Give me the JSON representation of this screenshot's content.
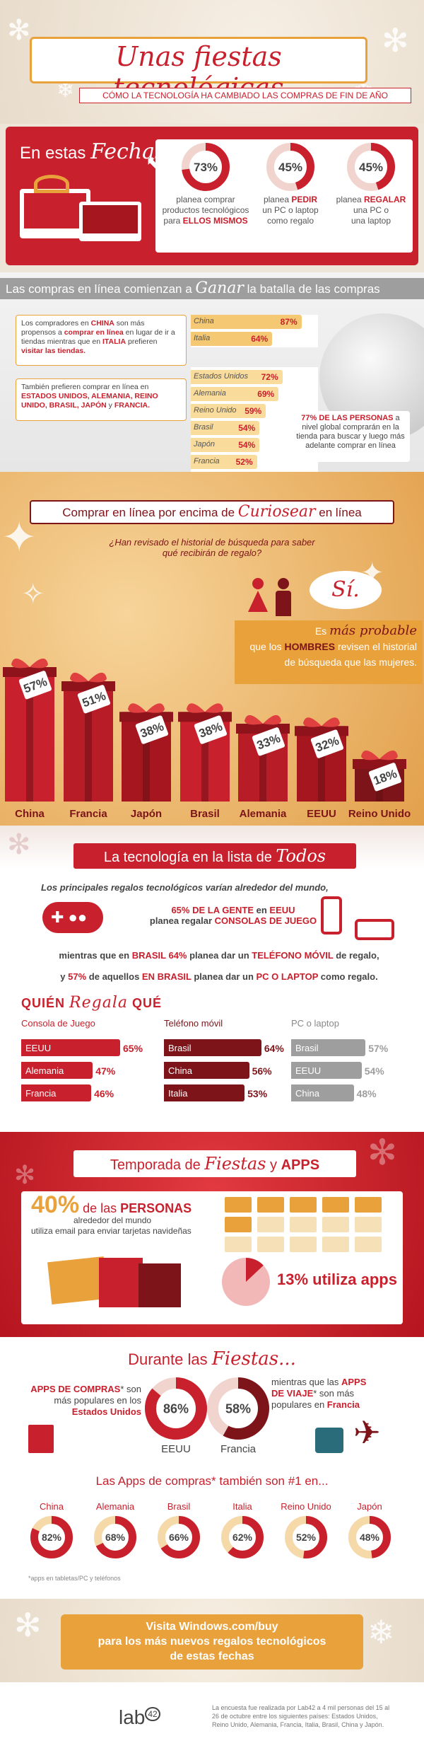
{
  "header": {
    "title": "Unas fiestas tecnológicas",
    "subtitle": "CÓMO LA TECNOLOGÍA HA CAMBIADO LAS COMPRAS DE FIN DE AÑO"
  },
  "fechas": {
    "heading_a": "En estas",
    "heading_b": "Fechas...",
    "stats": [
      {
        "value": "73%",
        "fill": 0.73,
        "l1": "planea comprar",
        "l2": "productos tecnológicos",
        "l3a": "para ",
        "l3b": "ELLOS MISMOS"
      },
      {
        "value": "45%",
        "fill": 0.45,
        "l1": "planea ",
        "l1b": "PEDIR",
        "l2": "un PC o laptop",
        "l3": "como regalo"
      },
      {
        "value": "45%",
        "fill": 0.45,
        "l1": "planea ",
        "l1b": "REGALAR",
        "l2": "una PC o",
        "l3": "una laptop"
      }
    ]
  },
  "compras": {
    "banner_a": "Las compras en línea comienzan a",
    "banner_b": "Ganar",
    "banner_c": "la batalla de las compras",
    "text1": [
      "Los compradores en ",
      "CHINA",
      " son más propensos a ",
      "comprar en línea",
      " en lugar de ir a tiendas mientras que en ",
      "ITALIA",
      " prefieren ",
      "visitar las tiendas."
    ],
    "text2": [
      "También prefieren comprar en línea en ",
      "ESTADOS UNIDOS, ALEMANIA, REINO UNIDO, BRASIL, JAPÓN",
      " y ",
      "FRANCIA."
    ],
    "group1": [
      {
        "country": "China",
        "pct": "87%",
        "v": 87
      },
      {
        "country": "Italia",
        "pct": "64%",
        "v": 64
      }
    ],
    "group2": [
      {
        "country": "Estados Unidos",
        "pct": "72%",
        "v": 72
      },
      {
        "country": "Alemania",
        "pct": "69%",
        "v": 69
      },
      {
        "country": "Reino Unido",
        "pct": "59%",
        "v": 59
      },
      {
        "country": "Brasil",
        "pct": "54%",
        "v": 54
      },
      {
        "country": "Japón",
        "pct": "54%",
        "v": 54
      },
      {
        "country": "Francia",
        "pct": "52%",
        "v": 52
      }
    ],
    "globe_note_a": "77% DE LAS PERSONAS",
    "globe_note_b": " a nivel global comprarán en la tienda para buscar y luego más adelante comprar en línea"
  },
  "curiosear": {
    "banner_a": "Comprar en línea por encima de",
    "banner_b": "Curiosear",
    "banner_c": "en línea",
    "question": "¿Han revisado el historial de búsqueda para saber qué recibirán de regalo?",
    "si": "Sí.",
    "ans_a": "Es ",
    "ans_b": "más probable",
    "ans_c": "que los ",
    "ans_d": "HOMBRES",
    "ans_e": " revisen el historial",
    "ans_f": "de búsqueda que las mujeres."
  },
  "chart_data": [
    {
      "type": "bar",
      "categories": [
        "China",
        "Francia",
        "Japón",
        "Brasil",
        "Alemania",
        "EEUU",
        "Reino Unido"
      ],
      "values": [
        57,
        51,
        38,
        38,
        33,
        32,
        18
      ],
      "labels": [
        "57%",
        "51%",
        "38%",
        "38%",
        "33%",
        "32%",
        "18%"
      ]
    }
  ],
  "lista": {
    "banner_a": "La tecnología en la lista de",
    "banner_b": "Todos",
    "p1": "Los principales regalos tecnológicos varían alrededor del mundo,",
    "p2a": "65% DE LA GENTE",
    "p2b": " en ",
    "p2c": "EEUU",
    "p3a": "planea regalar ",
    "p3b": "CONSOLAS DE JUEGO",
    "p4a": "mientras que en ",
    "p4b": "BRASIL 64%",
    "p4c": " planea dar un ",
    "p4d": "TELÉFONO MÓVIL",
    "p4e": " de regalo,",
    "p5a": "y ",
    "p5b": "57%",
    "p5c": " de aquellos ",
    "p5d": "EN BRASIL",
    "p5e": " planea dar un ",
    "p5f": "PC O LAPTOP",
    "p5g": " como regalo.",
    "quien_a": "QUIÉN",
    "quien_b": "Regala",
    "quien_c": "QUÉ",
    "cols": [
      {
        "title": "Consola de Juego",
        "color": "#c8202c",
        "rows": [
          {
            "c": "EEUU",
            "p": "65%",
            "v": 65
          },
          {
            "c": "Alemania",
            "p": "47%",
            "v": 47
          },
          {
            "c": "Francia",
            "p": "46%",
            "v": 46
          }
        ]
      },
      {
        "title": "Teléfono móvil",
        "color": "#7d1419",
        "rows": [
          {
            "c": "Brasil",
            "p": "64%",
            "v": 64
          },
          {
            "c": "China",
            "p": "56%",
            "v": 56
          },
          {
            "c": "Italia",
            "p": "53%",
            "v": 53
          }
        ]
      },
      {
        "title": "PC o laptop",
        "color": "#9e9e9e",
        "rows": [
          {
            "c": "Brasil",
            "p": "57%",
            "v": 57
          },
          {
            "c": "EEUU",
            "p": "54%",
            "v": 54
          },
          {
            "c": "China",
            "p": "48%",
            "v": 48
          }
        ]
      }
    ]
  },
  "apps": {
    "banner_a": "Temporada de",
    "banner_b": "Fiestas",
    "banner_c": "y",
    "banner_d": "APPS",
    "email_a": "40%",
    "email_b": " de las ",
    "email_c": "PERSONAS",
    "email_d": "alrededor del mundo",
    "email_e": "utiliza email para enviar tarjetas navideñas",
    "apps_pct": "13% utiliza apps",
    "apps_v": 13,
    "durante_a": "Durante las",
    "durante_b": "Fiestas...",
    "left_a": "APPS DE COMPRAS",
    "left_b": "* son más populares en los ",
    "left_c": "Estados Unidos",
    "right_a": "mientras que las ",
    "right_b": "APPS DE VIAJE",
    "right_c": "* son más populares en ",
    "right_d": "Francia",
    "d1": {
      "pct": "86%",
      "v": 86,
      "label": "EEUU"
    },
    "d2": {
      "pct": "58%",
      "v": 58,
      "label": "Francia"
    },
    "also": "Las Apps de compras* también son #1 en...",
    "countries": [
      {
        "c": "China",
        "p": "82%",
        "v": 82
      },
      {
        "c": "Alemania",
        "p": "68%",
        "v": 68
      },
      {
        "c": "Brasil",
        "p": "66%",
        "v": 66
      },
      {
        "c": "Italia",
        "p": "62%",
        "v": 62
      },
      {
        "c": "Reino Unido",
        "p": "52%",
        "v": 52
      },
      {
        "c": "Japón",
        "p": "48%",
        "v": 48
      }
    ],
    "footnote": "*apps en tabletas/PC y teléfonos"
  },
  "cta": {
    "l1": "Visita Windows.com/buy",
    "l2": "para los más nuevos regalos tecnológicos",
    "l3": "de estas fechas"
  },
  "footer": {
    "logo": "lab",
    "logo_sup": "42",
    "note": "La encuesta fue realizada por Lab42 a 4 mil personas del 15 al 26 de octubre entre los siguientes países: Estados Unidos, Reino Unido, Alemania, Francia, Italia, Brasil, China y Japón."
  },
  "colors": {
    "red": "#c8202c",
    "dark_red": "#7d1419",
    "orange": "#e9a13b",
    "cream": "#f5e6c8"
  }
}
